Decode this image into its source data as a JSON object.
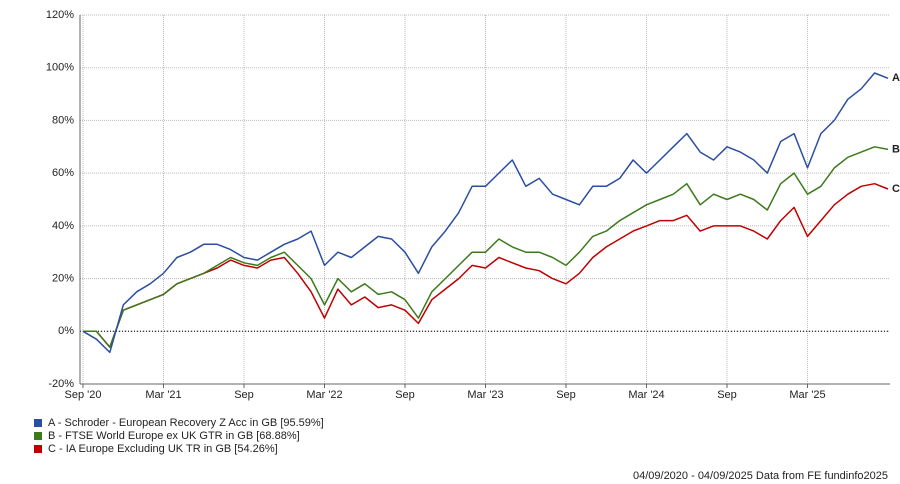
{
  "chart_data": {
    "type": "line",
    "categories": [
      "Sep '20",
      null,
      null,
      null,
      null,
      null,
      "Mar '21",
      null,
      null,
      null,
      null,
      null,
      "Sep",
      null,
      null,
      null,
      null,
      null,
      "Mar '22",
      null,
      null,
      null,
      null,
      null,
      "Sep",
      null,
      null,
      null,
      null,
      null,
      "Mar '23",
      null,
      null,
      null,
      null,
      null,
      "Sep",
      null,
      null,
      null,
      null,
      null,
      "Mar '24",
      null,
      null,
      null,
      null,
      null,
      "Sep",
      null,
      null,
      null,
      null,
      null,
      "Mar '25",
      null,
      null,
      null,
      null,
      null,
      null
    ],
    "series": [
      {
        "name": "A - Schroder - European Recovery Z Acc in GB [95.59%]",
        "end_label": "A",
        "color": "#2a4ea0",
        "values": [
          0,
          -3,
          -8,
          10,
          15,
          18,
          22,
          28,
          30,
          33,
          33,
          31,
          28,
          27,
          30,
          33,
          35,
          38,
          25,
          30,
          28,
          32,
          36,
          35,
          30,
          22,
          32,
          38,
          45,
          55,
          55,
          60,
          65,
          55,
          58,
          52,
          50,
          48,
          55,
          55,
          58,
          65,
          60,
          65,
          70,
          75,
          68,
          65,
          70,
          68,
          65,
          60,
          72,
          75,
          62,
          75,
          80,
          88,
          92,
          98,
          96
        ]
      },
      {
        "name": "B - FTSE World Europe ex UK GTR in GB [68.88%]",
        "end_label": "B",
        "color": "#3d7a1c",
        "values": [
          0,
          0,
          -6,
          8,
          10,
          12,
          14,
          18,
          20,
          22,
          25,
          28,
          26,
          25,
          28,
          30,
          25,
          20,
          10,
          20,
          15,
          18,
          14,
          15,
          12,
          5,
          15,
          20,
          25,
          30,
          30,
          35,
          32,
          30,
          30,
          28,
          25,
          30,
          36,
          38,
          42,
          45,
          48,
          50,
          52,
          56,
          48,
          52,
          50,
          52,
          50,
          46,
          56,
          60,
          52,
          55,
          62,
          66,
          68,
          70,
          69
        ]
      },
      {
        "name": "C - IA Europe Excluding UK TR in GB [54.26%]",
        "end_label": "C",
        "color": "#c00000",
        "values": [
          0,
          0,
          -6,
          8,
          10,
          12,
          14,
          18,
          20,
          22,
          24,
          27,
          25,
          24,
          27,
          28,
          22,
          15,
          5,
          16,
          10,
          13,
          9,
          10,
          8,
          3,
          12,
          16,
          20,
          25,
          24,
          28,
          26,
          24,
          23,
          20,
          18,
          22,
          28,
          32,
          35,
          38,
          40,
          42,
          42,
          44,
          38,
          40,
          40,
          40,
          38,
          35,
          42,
          47,
          36,
          42,
          48,
          52,
          55,
          56,
          54
        ]
      }
    ],
    "ylim": [
      -20,
      120
    ],
    "yticks": [
      {
        "value": -20,
        "label": "-20%"
      },
      {
        "value": 0,
        "label": "0%"
      },
      {
        "value": 20,
        "label": "20%"
      },
      {
        "value": 40,
        "label": "40%"
      },
      {
        "value": 60,
        "label": "60%"
      },
      {
        "value": 80,
        "label": "80%"
      },
      {
        "value": 100,
        "label": "100%"
      },
      {
        "value": 120,
        "label": "120%"
      }
    ],
    "grid": true,
    "footer": "04/09/2020 - 04/09/2025 Data from FE fundinfo2025"
  }
}
